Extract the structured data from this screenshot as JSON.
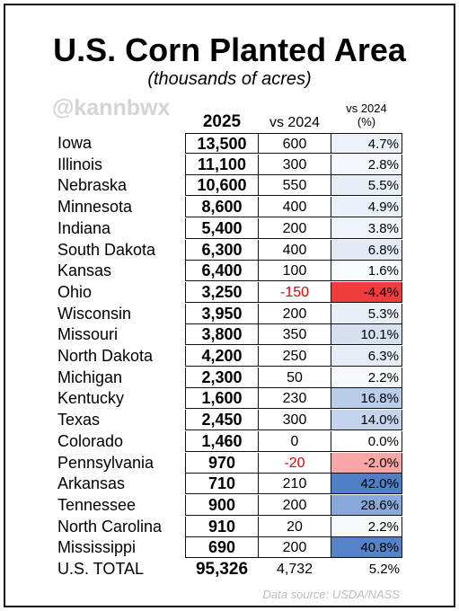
{
  "title": "U.S. Corn Planted Area",
  "subtitle": "(thousands of acres)",
  "watermark": "@kannbwx",
  "source": "Data source: USDA/NASS",
  "columns": {
    "c2025": "2025",
    "vs2024": "vs 2024",
    "pct_line1": "vs 2024",
    "pct_line2": "(%)"
  },
  "colors": {
    "positive": "#4f7fc6",
    "negative": "#f03c3c",
    "neutral": "#ffffff"
  },
  "chart_data": {
    "type": "table",
    "title": "U.S. Corn Planted Area",
    "subtitle": "(thousands of acres)",
    "columns": [
      "2025",
      "vs 2024",
      "vs 2024 (%)"
    ],
    "rows": [
      {
        "state": "Iowa",
        "v2025": "13,500",
        "chg": "600",
        "pct": "4.7%",
        "pct_num": 4.7
      },
      {
        "state": "Illinois",
        "v2025": "11,100",
        "chg": "300",
        "pct": "2.8%",
        "pct_num": 2.8
      },
      {
        "state": "Nebraska",
        "v2025": "10,600",
        "chg": "550",
        "pct": "5.5%",
        "pct_num": 5.5
      },
      {
        "state": "Minnesota",
        "v2025": "8,600",
        "chg": "400",
        "pct": "4.9%",
        "pct_num": 4.9
      },
      {
        "state": "Indiana",
        "v2025": "5,400",
        "chg": "200",
        "pct": "3.8%",
        "pct_num": 3.8
      },
      {
        "state": "South Dakota",
        "v2025": "6,300",
        "chg": "400",
        "pct": "6.8%",
        "pct_num": 6.8
      },
      {
        "state": "Kansas",
        "v2025": "6,400",
        "chg": "100",
        "pct": "1.6%",
        "pct_num": 1.6
      },
      {
        "state": "Ohio",
        "v2025": "3,250",
        "chg": "-150",
        "pct": "-4.4%",
        "pct_num": -4.4
      },
      {
        "state": "Wisconsin",
        "v2025": "3,950",
        "chg": "200",
        "pct": "5.3%",
        "pct_num": 5.3
      },
      {
        "state": "Missouri",
        "v2025": "3,800",
        "chg": "350",
        "pct": "10.1%",
        "pct_num": 10.1
      },
      {
        "state": "North Dakota",
        "v2025": "4,200",
        "chg": "250",
        "pct": "6.3%",
        "pct_num": 6.3
      },
      {
        "state": "Michigan",
        "v2025": "2,300",
        "chg": "50",
        "pct": "2.2%",
        "pct_num": 2.2
      },
      {
        "state": "Kentucky",
        "v2025": "1,600",
        "chg": "230",
        "pct": "16.8%",
        "pct_num": 16.8
      },
      {
        "state": "Texas",
        "v2025": "2,450",
        "chg": "300",
        "pct": "14.0%",
        "pct_num": 14.0
      },
      {
        "state": "Colorado",
        "v2025": "1,460",
        "chg": "0",
        "pct": "0.0%",
        "pct_num": 0.0
      },
      {
        "state": "Pennsylvania",
        "v2025": "970",
        "chg": "-20",
        "pct": "-2.0%",
        "pct_num": -2.0
      },
      {
        "state": "Arkansas",
        "v2025": "710",
        "chg": "210",
        "pct": "42.0%",
        "pct_num": 42.0
      },
      {
        "state": "Tennessee",
        "v2025": "900",
        "chg": "200",
        "pct": "28.6%",
        "pct_num": 28.6
      },
      {
        "state": "North Carolina",
        "v2025": "910",
        "chg": "20",
        "pct": "2.2%",
        "pct_num": 2.2
      },
      {
        "state": "Mississippi",
        "v2025": "690",
        "chg": "200",
        "pct": "40.8%",
        "pct_num": 40.8
      }
    ],
    "total": {
      "state": "U.S. TOTAL",
      "v2025": "95,326",
      "chg": "4,732",
      "pct": "5.2%",
      "pct_num": 5.2
    }
  }
}
